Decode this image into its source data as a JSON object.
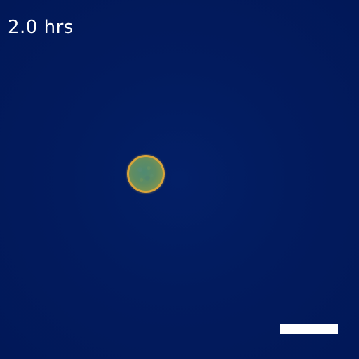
{
  "overlay": {
    "timestamp": "2.0 hrs"
  },
  "colors": {
    "background": "#011a5c",
    "cell_rim": "#d9a43a",
    "cell_interior": "#5f8c62",
    "scale_bar": "#ffffff",
    "timestamp_text": "#ffffff"
  }
}
